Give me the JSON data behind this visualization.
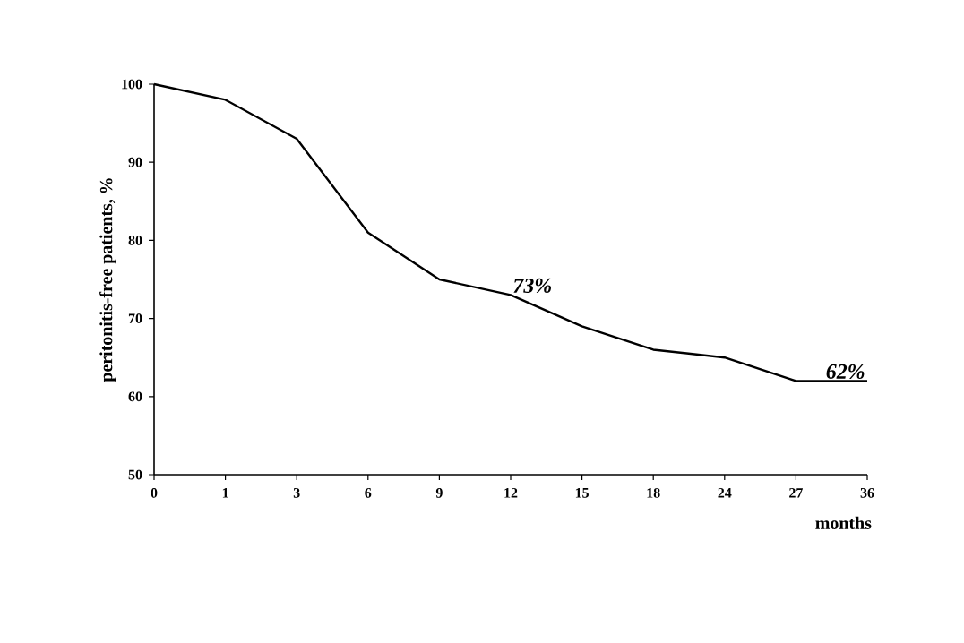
{
  "chart_data": {
    "type": "line",
    "categories": [
      "0",
      "1",
      "3",
      "6",
      "9",
      "12",
      "15",
      "18",
      "24",
      "27",
      "36"
    ],
    "series": [
      {
        "color": "#000000",
        "values": [
          100,
          98,
          93,
          81,
          75,
          73,
          69,
          66,
          65,
          62,
          62
        ]
      }
    ],
    "ylim": [
      50,
      100
    ],
    "yticks": [
      50,
      60,
      70,
      80,
      90,
      100
    ],
    "xlabel": "months",
    "ylabel": "peritonitis-free patients, %",
    "annotations": [
      {
        "text": "73%",
        "x": "12",
        "y": 73
      },
      {
        "text": "62%",
        "x": "36",
        "y": 62
      }
    ],
    "grid": false,
    "marker": "none",
    "line_style": "solid"
  }
}
